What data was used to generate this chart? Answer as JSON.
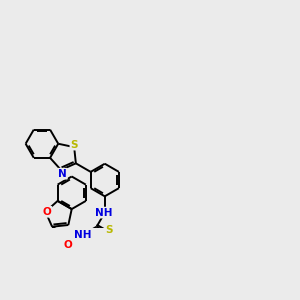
{
  "background_color": "#ebebeb",
  "bond_color": "#000000",
  "atom_colors": {
    "S": "#b8b800",
    "N": "#0000e0",
    "O": "#ff0000",
    "C": "#000000"
  },
  "lw": 1.4,
  "dbl_inner": 0.055,
  "fontsize": 7.5
}
